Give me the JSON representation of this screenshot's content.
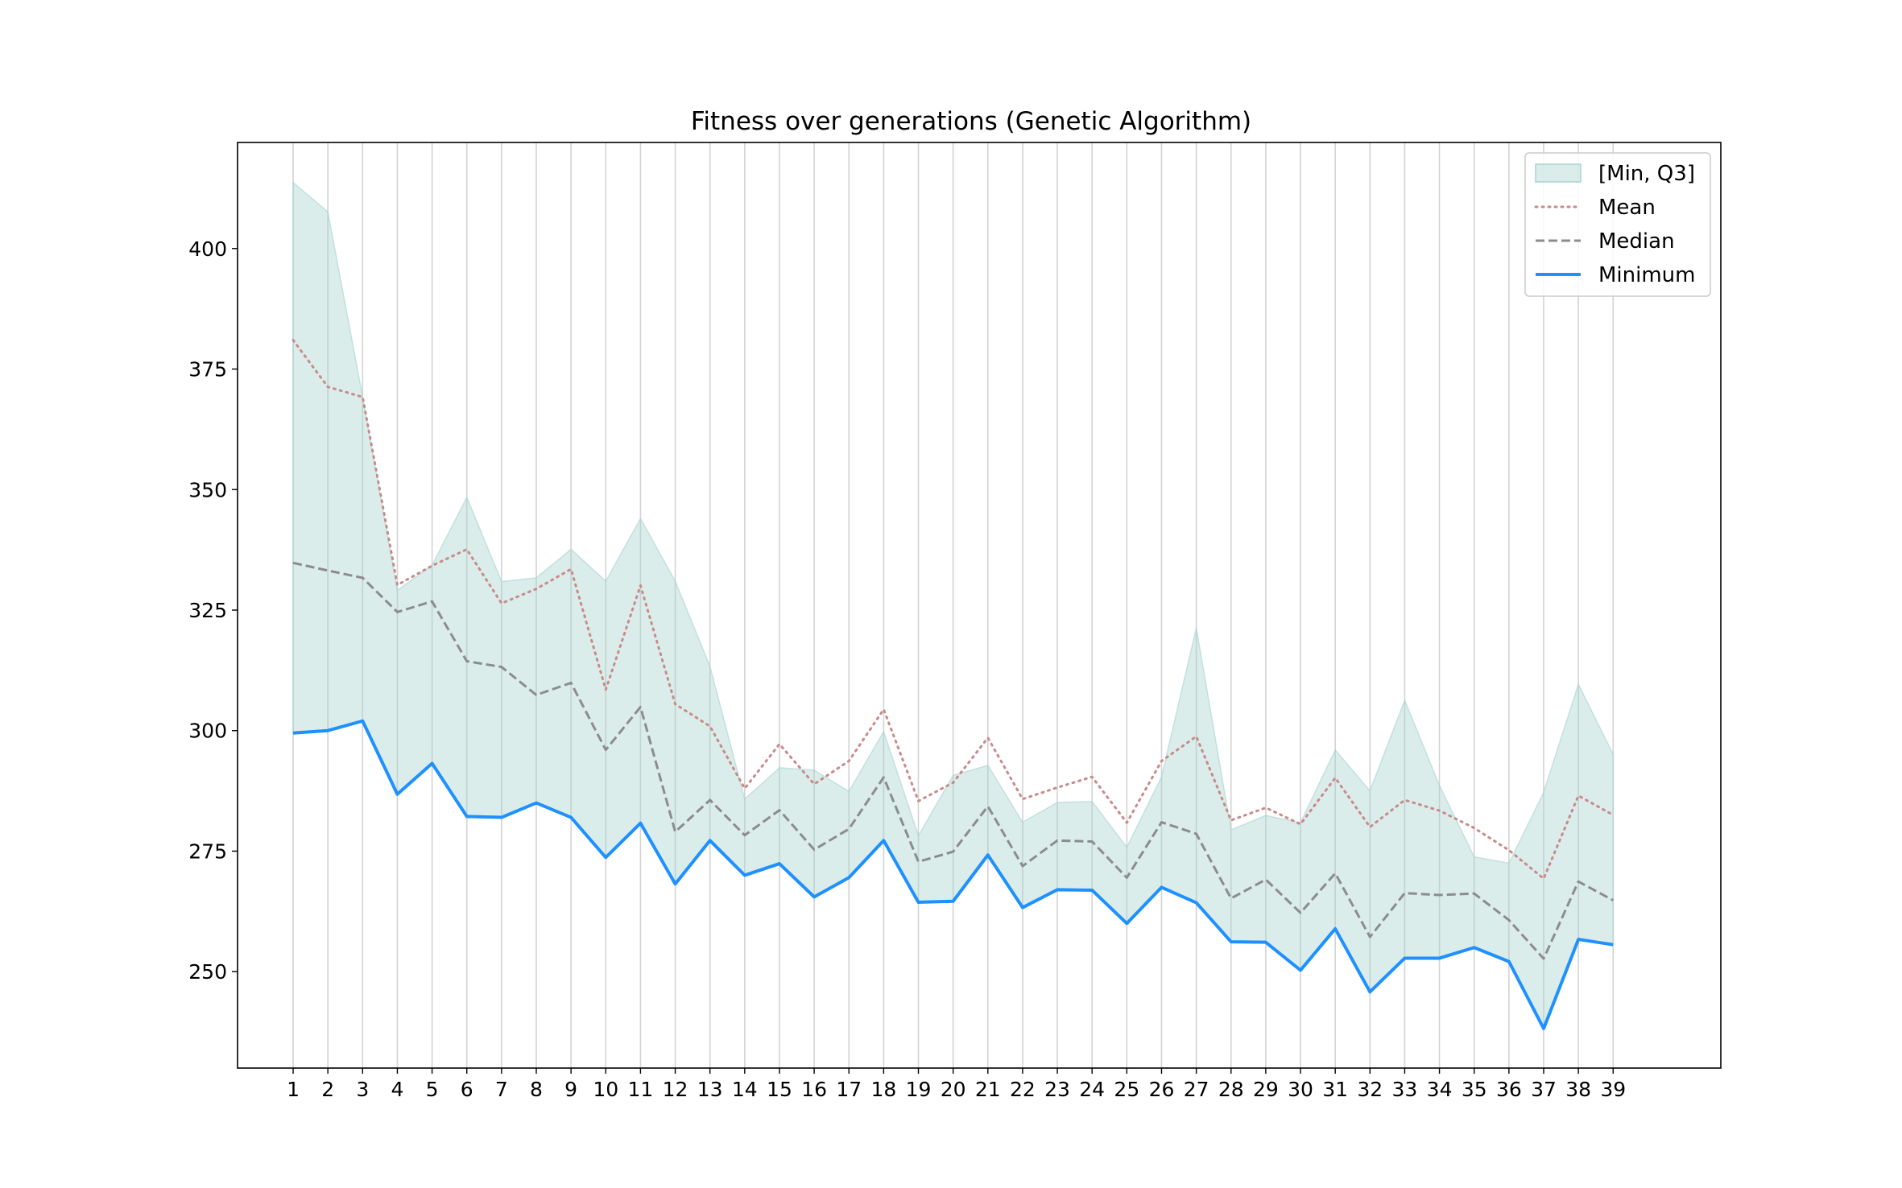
{
  "chart_data": {
    "type": "line",
    "title": "Fitness over generations (Genetic Algorithm)",
    "xlabel": "",
    "ylabel": "",
    "x": [
      1,
      2,
      3,
      4,
      5,
      6,
      7,
      8,
      9,
      10,
      11,
      12,
      13,
      14,
      15,
      16,
      17,
      18,
      19,
      20,
      21,
      22,
      23,
      24,
      25,
      26,
      27,
      28,
      29,
      30,
      31,
      32,
      33,
      34,
      35,
      36,
      37,
      38,
      39
    ],
    "x_tick_labels": [
      "1",
      "2",
      "3",
      "4",
      "5",
      "6",
      "7",
      "8",
      "9",
      "10",
      "11",
      "12",
      "13",
      "14",
      "15",
      "16",
      "17",
      "18",
      "19",
      "20",
      "21",
      "22",
      "23",
      "24",
      "25",
      "26",
      "27",
      "28",
      "29",
      "30",
      "31",
      "32",
      "33",
      "34",
      "35",
      "36",
      "37",
      "38",
      "39"
    ],
    "xlim": [
      -0.6,
      42.1
    ],
    "ylim": [
      230,
      422
    ],
    "y_ticks": [
      250,
      275,
      300,
      325,
      350,
      375,
      400
    ],
    "y_tick_labels": [
      "250",
      "275",
      "300",
      "325",
      "350",
      "375",
      "400"
    ],
    "grid": "vertical",
    "legend_placement": "top-right",
    "series": [
      {
        "name": "[Min, Q3]",
        "kind": "band",
        "color": "#a7d4d0",
        "lower": [
          299.5,
          300,
          302,
          286.8,
          293.2,
          282.2,
          282,
          285,
          282,
          273.7,
          280.8,
          268.2,
          277.2,
          270,
          272.4,
          265.5,
          269.5,
          277.2,
          264.4,
          264.6,
          274.2,
          263.3,
          267,
          266.9,
          260,
          267.5,
          264.3,
          256.2,
          256.1,
          250.3,
          258.9,
          245.8,
          252.8,
          252.8,
          255,
          252.1,
          238.2,
          256.7,
          255.6
        ],
        "upper": [
          413.7,
          407.6,
          369.2,
          329.1,
          334.3,
          348.4,
          330.9,
          331.7,
          337.6,
          331,
          344,
          331,
          313.3,
          285.8,
          292.3,
          291.8,
          287.4,
          299.8,
          278.2,
          290.7,
          292.8,
          281,
          285.1,
          285.3,
          275.8,
          290.4,
          321.3,
          279.4,
          282.4,
          280.9,
          296,
          287.5,
          306.3,
          288.6,
          273.8,
          272.5,
          287.2,
          309.6,
          295.1
        ]
      },
      {
        "name": "Mean",
        "kind": "line",
        "style": "dotted",
        "color": "#c98a8a",
        "values": [
          381,
          371.3,
          369.2,
          330.2,
          334.2,
          337.6,
          326.4,
          329.4,
          333.5,
          308.5,
          330.1,
          305.5,
          300.9,
          288,
          297.2,
          288.9,
          293.7,
          304.4,
          285.4,
          289.2,
          298.5,
          285.8,
          288.2,
          290.4,
          280.9,
          293.7,
          298.8,
          281.4,
          284,
          280.6,
          290.2,
          280,
          285.6,
          283.4,
          279.8,
          275.2,
          269.3,
          286.5,
          282.5
        ]
      },
      {
        "name": "Median",
        "kind": "line",
        "style": "dashed",
        "color": "#8c8c8c",
        "values": [
          334.8,
          333.2,
          331.7,
          324.6,
          326.8,
          314.4,
          313.2,
          307.4,
          309.9,
          296,
          304.9,
          279,
          285.6,
          278.3,
          283.5,
          275.3,
          279.6,
          290.3,
          272.8,
          274.9,
          284.3,
          271.9,
          277.2,
          277,
          269.5,
          281,
          278.6,
          265.2,
          269.1,
          262.2,
          270.4,
          257.2,
          266.3,
          265.9,
          266.2,
          260.7,
          252.7,
          268.7,
          264.8
        ]
      },
      {
        "name": "Minimum",
        "kind": "line",
        "style": "solid",
        "color": "#1e90ff",
        "values": [
          299.5,
          300,
          302,
          286.8,
          293.2,
          282.2,
          282,
          285,
          282,
          273.7,
          280.8,
          268.2,
          277.2,
          270,
          272.4,
          265.5,
          269.5,
          277.2,
          264.4,
          264.6,
          274.2,
          263.3,
          267,
          266.9,
          260,
          267.5,
          264.3,
          256.2,
          256.1,
          250.3,
          258.9,
          245.8,
          252.8,
          252.8,
          255,
          252.1,
          238.2,
          256.7,
          255.6
        ]
      }
    ]
  }
}
